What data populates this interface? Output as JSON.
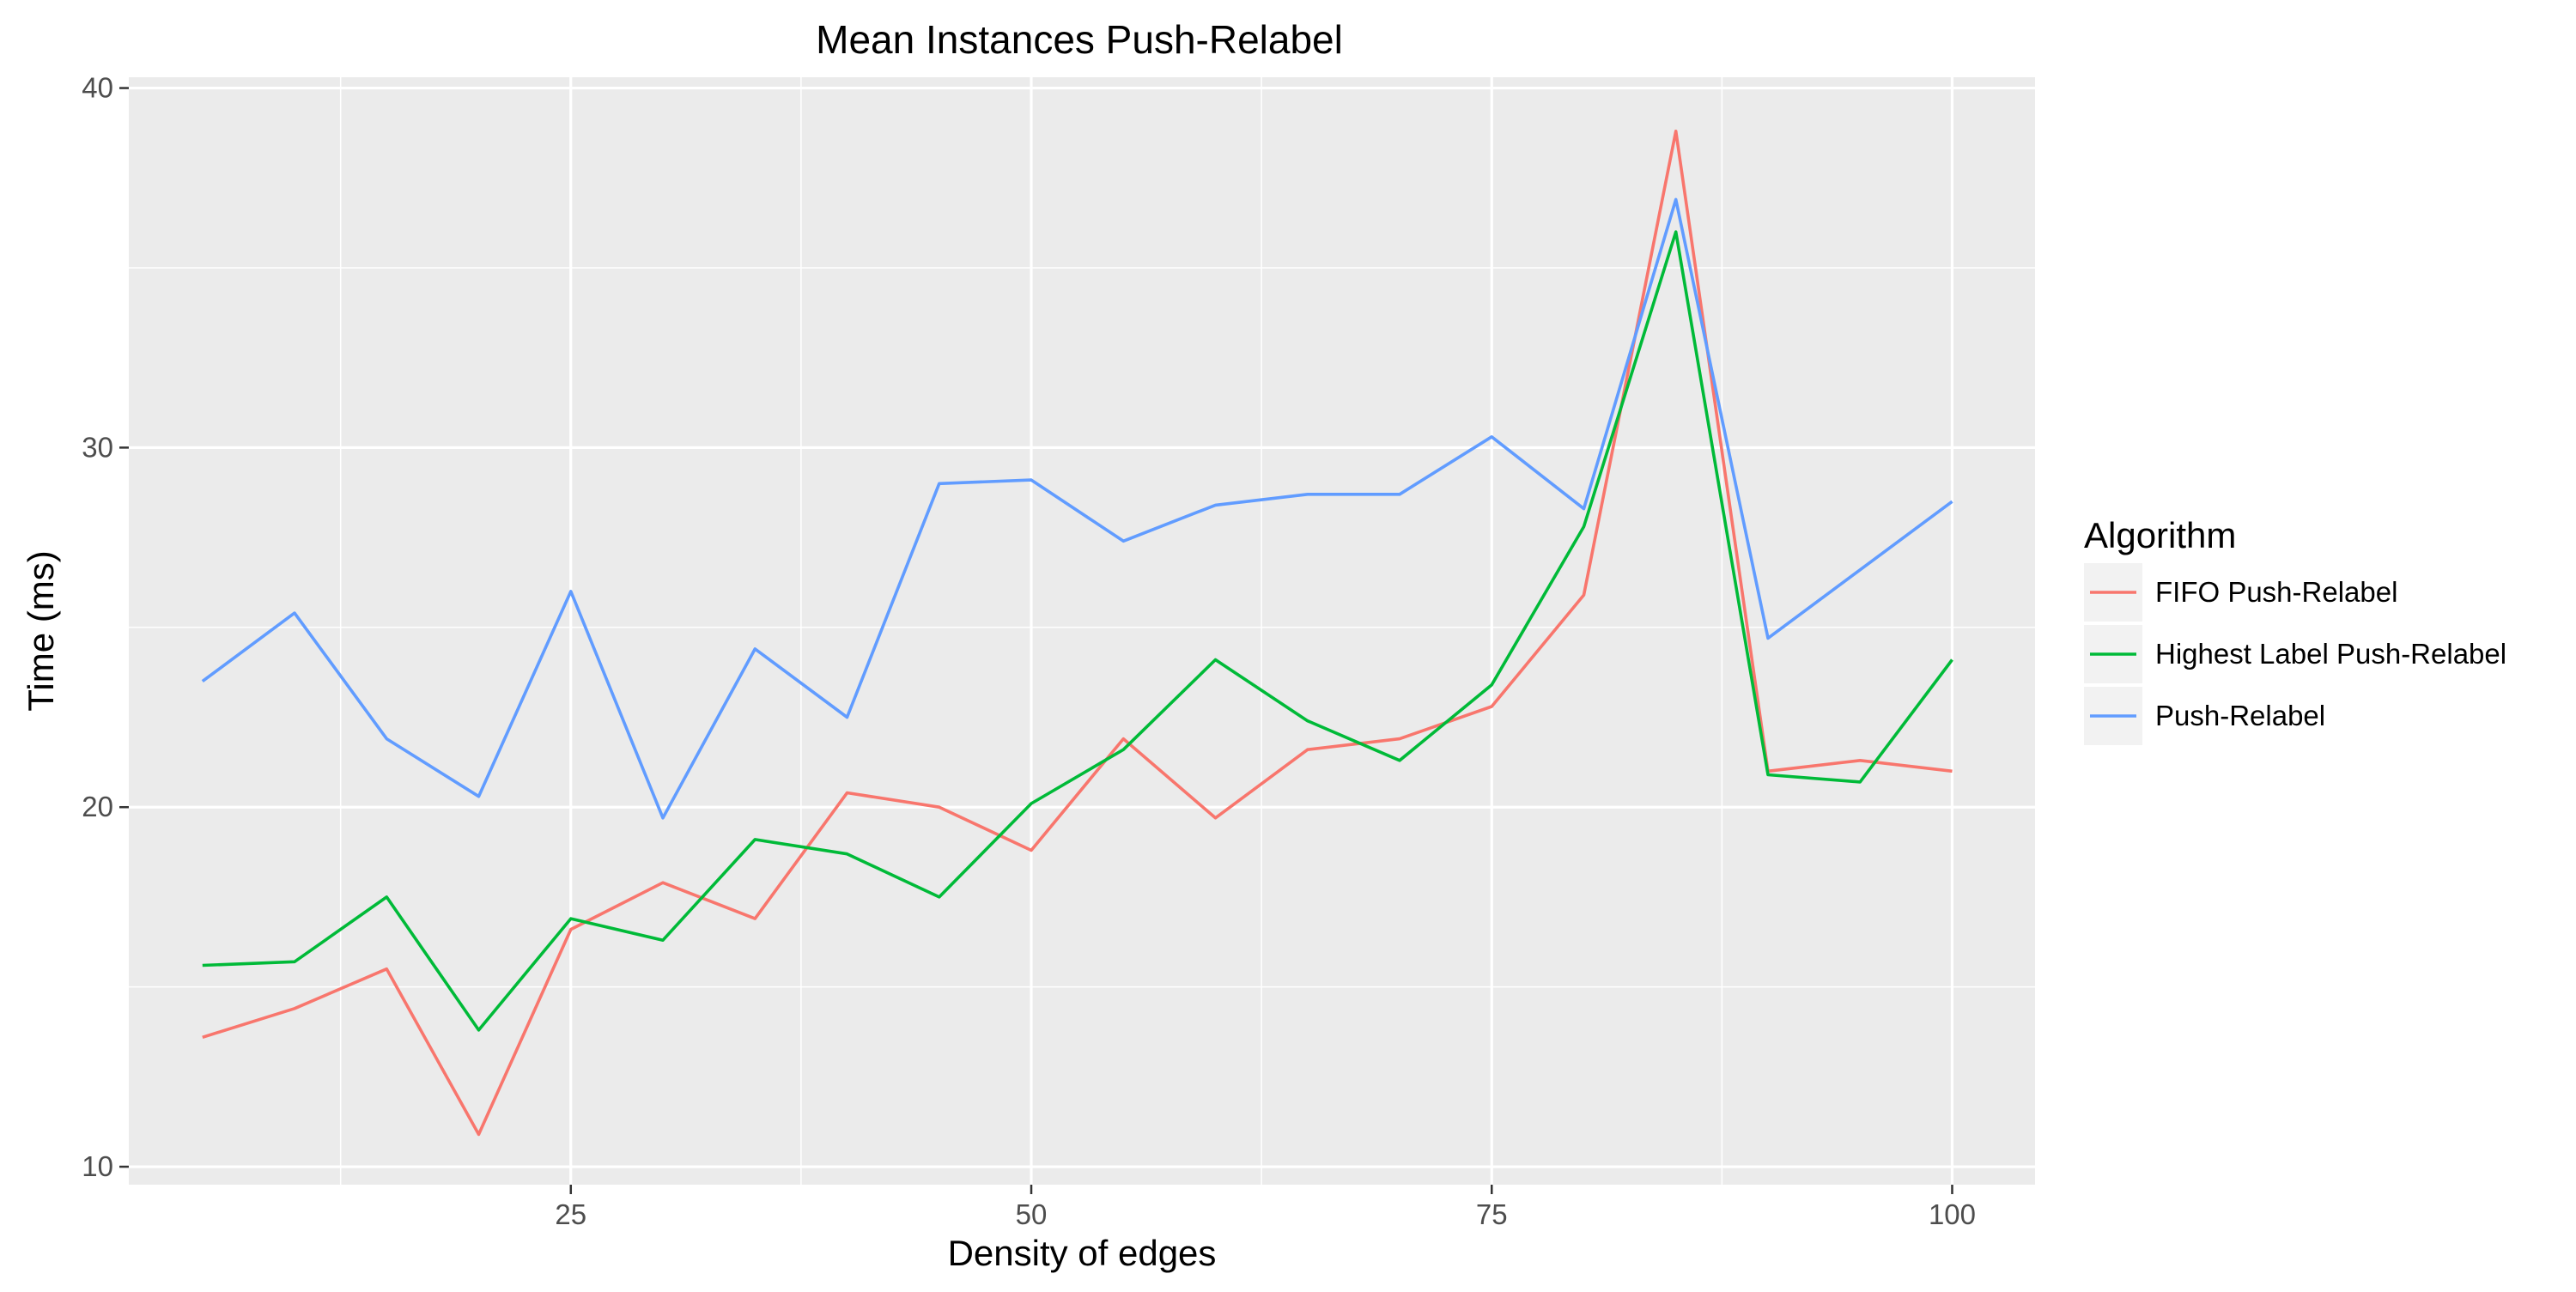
{
  "chart_data": {
    "type": "line",
    "title": "Mean Instances Push-Relabel",
    "xlabel": "Density of edges",
    "ylabel": "Time (ms)",
    "xlim": [
      1,
      104.5
    ],
    "ylim": [
      9.5,
      40.3
    ],
    "x_ticks": [
      25,
      50,
      75,
      100
    ],
    "x_tick_labels": [
      "25",
      "50",
      "75",
      "100"
    ],
    "x_minor_ticks": [
      12.5,
      37.5,
      62.5,
      87.5
    ],
    "y_ticks": [
      10,
      20,
      30,
      40
    ],
    "y_tick_labels": [
      "10",
      "20",
      "30",
      "40"
    ],
    "y_minor_ticks": [
      15,
      25,
      35
    ],
    "grid": true,
    "legend_position": "right",
    "legend_title": "Algorithm",
    "x": [
      5,
      10,
      15,
      20,
      25,
      30,
      35,
      40,
      45,
      50,
      55,
      60,
      65,
      70,
      75,
      80,
      85,
      90,
      95,
      100
    ],
    "series": [
      {
        "name": "FIFO Push-Relabel",
        "color": "#F8766D",
        "values": [
          13.6,
          14.4,
          15.5,
          10.9,
          16.6,
          17.9,
          16.9,
          20.4,
          20.0,
          18.8,
          21.9,
          19.7,
          21.6,
          21.9,
          22.8,
          25.9,
          38.8,
          21.0,
          21.3,
          21.0
        ]
      },
      {
        "name": "Highest Label Push-Relabel",
        "color": "#00BA38",
        "values": [
          15.6,
          15.7,
          17.5,
          13.8,
          16.9,
          16.3,
          19.1,
          18.7,
          17.5,
          20.1,
          21.6,
          24.1,
          22.4,
          21.3,
          23.4,
          27.8,
          36.0,
          20.9,
          20.7,
          24.1
        ]
      },
      {
        "name": "Push-Relabel",
        "color": "#619CFF",
        "values": [
          23.5,
          25.4,
          21.9,
          20.3,
          26.0,
          19.7,
          24.4,
          22.5,
          29.0,
          29.1,
          27.4,
          28.4,
          28.7,
          28.7,
          30.3,
          28.3,
          36.9,
          24.7,
          26.6,
          28.5
        ]
      }
    ]
  }
}
